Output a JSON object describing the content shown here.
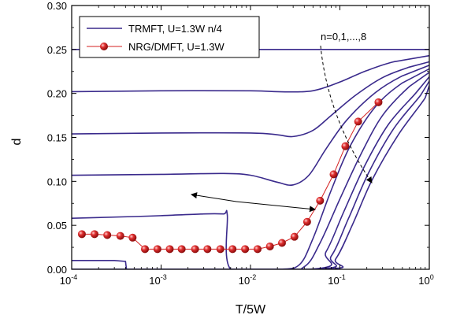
{
  "chart_data": {
    "type": "line",
    "xlabel": "T/5W",
    "ylabel": "d",
    "xscale": "log",
    "xlim": [
      0.0001,
      1
    ],
    "ylim": [
      0,
      0.3
    ],
    "grid": false,
    "legend_position": "top-left",
    "x_ticks": [
      {
        "base": "10",
        "exp": "-4"
      },
      {
        "base": "10",
        "exp": "-3"
      },
      {
        "base": "10",
        "exp": "-2"
      },
      {
        "base": "10",
        "exp": "-1"
      },
      {
        "base": "10",
        "exp": "0"
      }
    ],
    "y_ticks": [
      "0.00",
      "0.05",
      "0.10",
      "0.15",
      "0.20",
      "0.25",
      "0.30"
    ],
    "colors": {
      "trmft": "#3a2a8c",
      "nrg_line": "#d42020",
      "nrg_marker": "#d42020",
      "arrow": "#000000"
    },
    "legend": [
      {
        "label": "TRMFT, U=1.3W n/4",
        "marker": "line"
      },
      {
        "label": "NRG/DMFT, U=1.3W",
        "marker": "line-circle"
      }
    ],
    "annotations": {
      "n_label": "n=0,1,...,8"
    },
    "series_trmft": [
      {
        "values": [
          [
            0.0001,
            0.25
          ],
          [
            0.001,
            0.25
          ],
          [
            0.01,
            0.25
          ],
          [
            0.1,
            0.25
          ],
          [
            1,
            0.25
          ]
        ]
      },
      {
        "values": [
          [
            0.0001,
            0.202
          ],
          [
            0.001,
            0.203
          ],
          [
            0.01,
            0.203
          ],
          [
            0.02,
            0.202
          ],
          [
            0.04,
            0.202
          ],
          [
            0.06,
            0.205
          ],
          [
            0.1,
            0.213
          ],
          [
            0.2,
            0.226
          ],
          [
            0.4,
            0.236
          ],
          [
            1,
            0.243
          ]
        ]
      },
      {
        "values": [
          [
            0.0001,
            0.154
          ],
          [
            0.001,
            0.155
          ],
          [
            0.01,
            0.155
          ],
          [
            0.02,
            0.153
          ],
          [
            0.03,
            0.151
          ],
          [
            0.05,
            0.158
          ],
          [
            0.08,
            0.175
          ],
          [
            0.15,
            0.198
          ],
          [
            0.3,
            0.218
          ],
          [
            0.6,
            0.23
          ],
          [
            1,
            0.236
          ]
        ]
      },
      {
        "values": [
          [
            0.0001,
            0.107
          ],
          [
            0.001,
            0.108
          ],
          [
            0.005,
            0.109
          ],
          [
            0.01,
            0.107
          ],
          [
            0.02,
            0.099
          ],
          [
            0.03,
            0.096
          ],
          [
            0.045,
            0.107
          ],
          [
            0.07,
            0.137
          ],
          [
            0.12,
            0.17
          ],
          [
            0.25,
            0.201
          ],
          [
            0.5,
            0.22
          ],
          [
            1,
            0.232
          ]
        ]
      },
      {
        "values": [
          [
            0.0001,
            0.058
          ],
          [
            0.0005,
            0.06
          ],
          [
            0.001,
            0.061
          ],
          [
            0.003,
            0.063
          ],
          [
            0.005,
            0.063
          ],
          [
            0.0055,
            0.062
          ],
          [
            0.006,
            0.0
          ],
          [
            0.02,
            0.0
          ],
          [
            0.035,
            0.005
          ],
          [
            0.05,
            0.035
          ],
          [
            0.08,
            0.09
          ],
          [
            0.13,
            0.14
          ],
          [
            0.25,
            0.185
          ],
          [
            0.5,
            0.212
          ],
          [
            1,
            0.228
          ]
        ]
      },
      {
        "values": [
          [
            0.0001,
            0.01
          ],
          [
            0.0003,
            0.01
          ],
          [
            0.0004,
            0.009
          ],
          [
            0.00041,
            0.0
          ],
          [
            0.02,
            0.0
          ],
          [
            0.04,
            0.003
          ],
          [
            0.06,
            0.03
          ],
          [
            0.1,
            0.08
          ],
          [
            0.17,
            0.13
          ],
          [
            0.3,
            0.175
          ],
          [
            0.6,
            0.208
          ],
          [
            1,
            0.224
          ]
        ]
      },
      {
        "values": [
          [
            0.0001,
            0.0
          ],
          [
            0.045,
            0.0
          ],
          [
            0.07,
            0.02
          ],
          [
            0.11,
            0.065
          ],
          [
            0.19,
            0.118
          ],
          [
            0.35,
            0.165
          ],
          [
            0.7,
            0.2
          ],
          [
            1,
            0.219
          ]
        ]
      },
      {
        "values": [
          [
            0.0001,
            0.0
          ],
          [
            0.05,
            0.0
          ],
          [
            0.08,
            0.015
          ],
          [
            0.125,
            0.058
          ],
          [
            0.21,
            0.11
          ],
          [
            0.4,
            0.16
          ],
          [
            0.8,
            0.198
          ],
          [
            1,
            0.214
          ]
        ]
      },
      {
        "values": [
          [
            0.0001,
            0.0
          ],
          [
            0.06,
            0.0
          ],
          [
            0.09,
            0.012
          ],
          [
            0.14,
            0.052
          ],
          [
            0.23,
            0.102
          ],
          [
            0.45,
            0.153
          ],
          [
            0.9,
            0.195
          ],
          [
            1,
            0.209
          ]
        ]
      }
    ],
    "series_nrg": {
      "values": [
        [
          0.00013,
          0.04
        ],
        [
          0.00018,
          0.04
        ],
        [
          0.00025,
          0.039
        ],
        [
          0.00035,
          0.038
        ],
        [
          0.00048,
          0.036
        ],
        [
          0.00066,
          0.023
        ],
        [
          0.00091,
          0.023
        ],
        [
          0.00125,
          0.023
        ],
        [
          0.0017,
          0.023
        ],
        [
          0.0024,
          0.023
        ],
        [
          0.0033,
          0.023
        ],
        [
          0.0046,
          0.023
        ],
        [
          0.0063,
          0.023
        ],
        [
          0.0087,
          0.023
        ],
        [
          0.012,
          0.023
        ],
        [
          0.0165,
          0.026
        ],
        [
          0.0225,
          0.03
        ],
        [
          0.031,
          0.037
        ],
        [
          0.043,
          0.054
        ],
        [
          0.06,
          0.078
        ],
        [
          0.085,
          0.108
        ],
        [
          0.115,
          0.14
        ],
        [
          0.16,
          0.168
        ],
        [
          0.27,
          0.19
        ]
      ]
    }
  }
}
